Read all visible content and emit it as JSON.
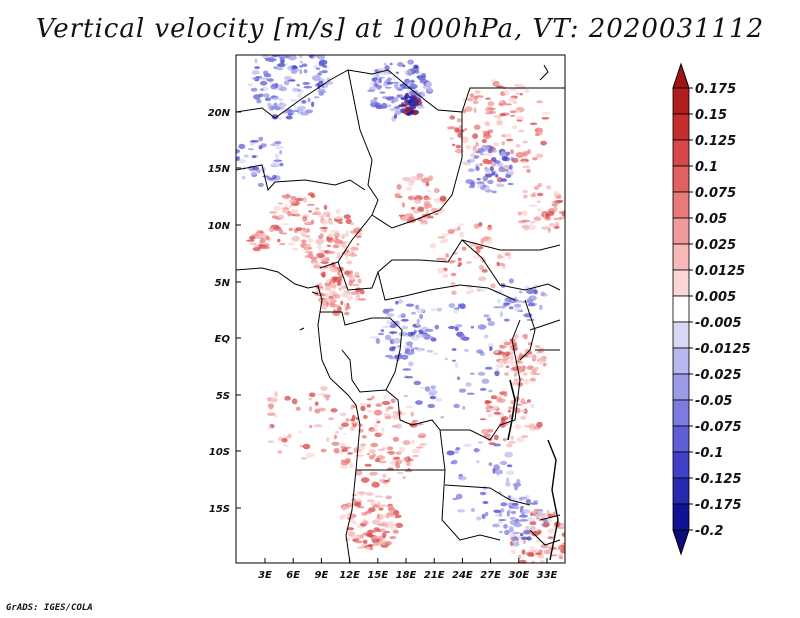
{
  "title": "Vertical velocity [m/s] at 1000hPa, VT: 2020031112",
  "footer": "GrADS: IGES/COLA",
  "map": {
    "lat_ticks": [
      "20N",
      "15N",
      "10N",
      "5N",
      "EQ",
      "5S",
      "10S",
      "15S"
    ],
    "lon_ticks": [
      "3E",
      "6E",
      "9E",
      "12E",
      "15E",
      "18E",
      "21E",
      "24E",
      "27E",
      "30E",
      "33E"
    ]
  },
  "colorbar": {
    "labels": [
      "0.175",
      "0.15",
      "0.125",
      "0.1",
      "0.075",
      "0.05",
      "0.025",
      "0.0125",
      "0.005",
      "-0.005",
      "-0.0125",
      "-0.025",
      "-0.05",
      "-0.075",
      "-0.1",
      "-0.125",
      "-0.175",
      "-0.2"
    ],
    "colors": [
      "#b01e1e",
      "#c62e2e",
      "#d84848",
      "#e36060",
      "#ea7a7a",
      "#f09a9a",
      "#f6b8b8",
      "#fad6d6",
      "#ffffff",
      "#d8d8f6",
      "#b8b8f0",
      "#9a9ae8",
      "#7c7ce0",
      "#5e5ed6",
      "#4040c8",
      "#2828b0",
      "#121296"
    ],
    "top_arrow_color": "#a01414",
    "bottom_arrow_color": "#0c0c7c"
  }
}
